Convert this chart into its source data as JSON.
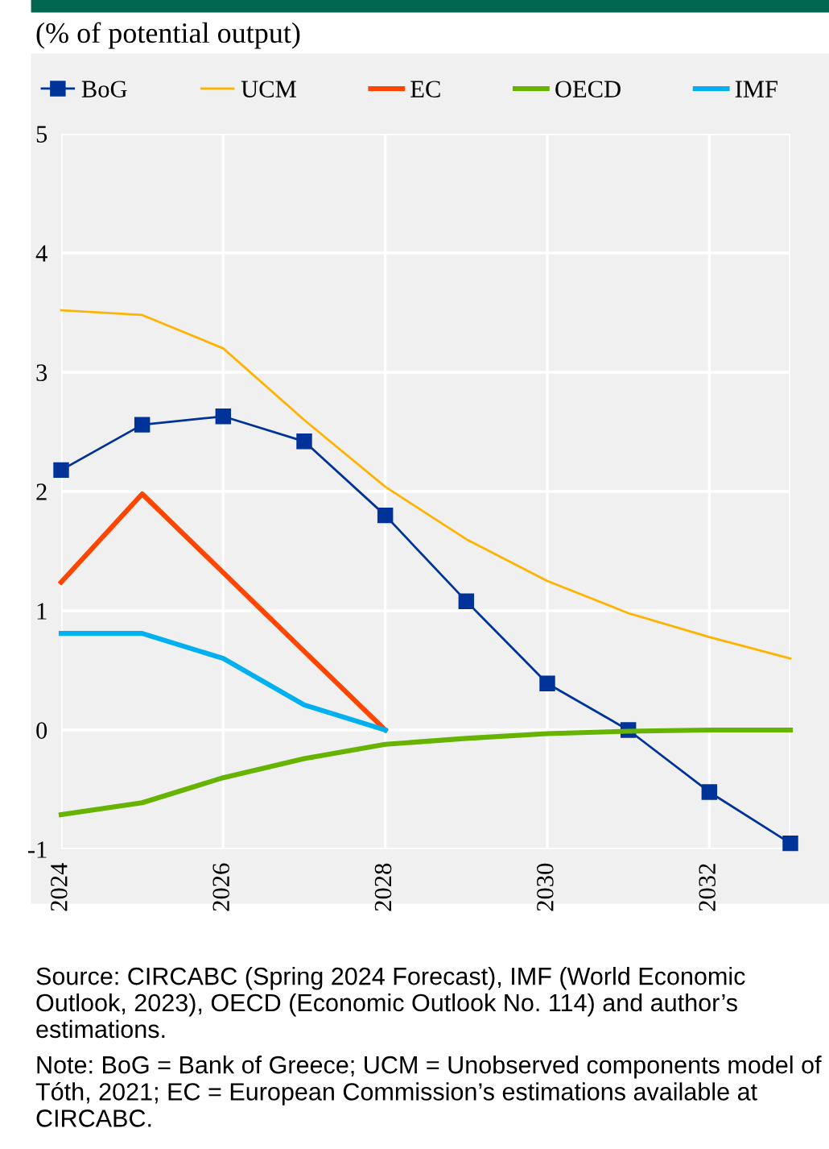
{
  "chart_data": {
    "type": "line",
    "title": "(% of potential output)",
    "xlim": [
      2024,
      2033
    ],
    "xticks": [
      2024,
      2026,
      2028,
      2030,
      2032
    ],
    "ylim": [
      -1,
      5
    ],
    "yticks": [
      -1,
      0,
      1,
      2,
      3,
      4,
      5
    ],
    "grid": true,
    "legend": "top",
    "series": [
      {
        "name": "BoG",
        "color": "#003399",
        "marker": "square",
        "x": [
          2024,
          2025,
          2026,
          2027,
          2028,
          2029,
          2030,
          2031,
          2032,
          2033
        ],
        "values": [
          2.18,
          2.56,
          2.63,
          2.42,
          1.8,
          1.08,
          0.39,
          0.0,
          -0.52,
          -0.95
        ]
      },
      {
        "name": "UCM",
        "color": "#ffb300",
        "x": [
          2024,
          2025,
          2026,
          2027,
          2028,
          2029,
          2030,
          2031,
          2032,
          2033
        ],
        "values": [
          3.52,
          3.48,
          3.2,
          2.6,
          2.04,
          1.6,
          1.25,
          0.98,
          0.78,
          0.6
        ]
      },
      {
        "name": "EC",
        "color": "#ff4500",
        "x": [
          2024,
          2025,
          2026,
          2027,
          2028
        ],
        "values": [
          1.24,
          1.98,
          1.32,
          0.66,
          0.0
        ]
      },
      {
        "name": "OECD",
        "color": "#66b300",
        "x": [
          2024,
          2025,
          2026,
          2027,
          2028,
          2029,
          2030,
          2031,
          2032,
          2033
        ],
        "values": [
          -0.71,
          -0.61,
          -0.4,
          -0.24,
          -0.12,
          -0.07,
          -0.03,
          -0.01,
          0.0,
          0.0
        ]
      },
      {
        "name": "IMF",
        "color": "#00b0f0",
        "x": [
          2024,
          2025,
          2026,
          2027,
          2028
        ],
        "values": [
          0.81,
          0.81,
          0.6,
          0.21,
          0.0
        ]
      }
    ],
    "annotations": [
      "Source: CIRCABC (Spring 2024 Forecast), IMF (World Economic Outlook, 2023), OECD (Economic Outlook No. 114) and author’s estimations.",
      "Note: BoG = Bank of Greece; UCM = Unobserved components model of Tóth, 2021; EC = European Commission’s estimations available at CIRCABC."
    ]
  }
}
